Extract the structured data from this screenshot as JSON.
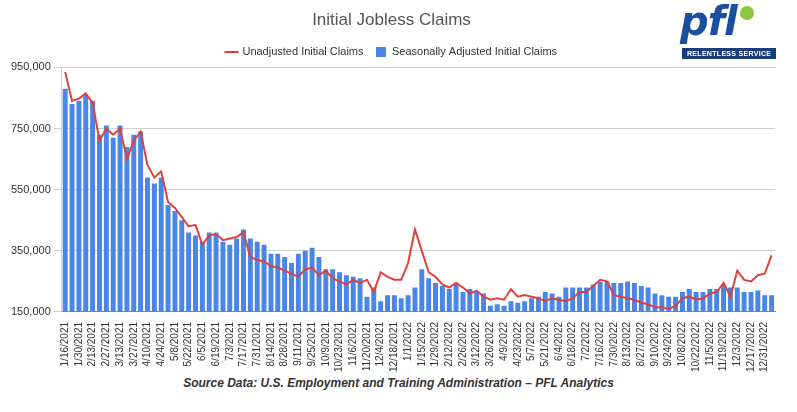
{
  "chart_data": {
    "type": "bar",
    "title": "Initial Jobless Claims",
    "source": "Source Data: U.S. Employment and Training Administration – PFL Analytics",
    "logo_text": "pfl",
    "logo_tagline": "RELENTLESS SERVICE",
    "categories": [
      "1/16/2021",
      null,
      "1/30/2021",
      null,
      "2/13/2021",
      null,
      "2/27/2021",
      null,
      "3/13/2021",
      null,
      "3/27/2021",
      null,
      "4/10/2021",
      null,
      "4/24/2021",
      null,
      "5/8/2021",
      null,
      "5/22/2021",
      null,
      "6/5/2021",
      null,
      "6/19/2021",
      null,
      "7/3/2021",
      null,
      "7/17/2021",
      null,
      "7/31/2021",
      null,
      "8/14/2021",
      null,
      "8/28/2021",
      null,
      "9/11/2021",
      null,
      "9/25/2021",
      null,
      "10/9/2021",
      null,
      "10/23/2021",
      null,
      "11/6/2021",
      null,
      "11/20/2021",
      null,
      "12/4/2021",
      null,
      "12/18/2021",
      null,
      "1/1/2022",
      null,
      "1/15/2022",
      null,
      "1/29/2022",
      null,
      "2/12/2022",
      null,
      "2/26/2022",
      null,
      "3/12/2022",
      null,
      "3/26/2022",
      null,
      "4/9/2022",
      null,
      "4/23/2022",
      null,
      "5/7/2022",
      null,
      "5/21/2022",
      null,
      "6/4/2022",
      null,
      "6/18/2022",
      null,
      "7/2/2022",
      null,
      "7/16/2022",
      null,
      "7/30/2022",
      null,
      "8/13/2022",
      null,
      "8/27/2022",
      null,
      "9/10/2022",
      null,
      "9/24/2022",
      null,
      "10/8/2022",
      null,
      "10/22/2022",
      null,
      "11/5/2022",
      null,
      "11/19/2022",
      null,
      "12/3/2022",
      null,
      "12/17/2022",
      null,
      "12/31/2022",
      null
    ],
    "series": [
      {
        "name": "Unadjusted Initial Claims",
        "type": "line",
        "color": "#e0403a",
        "line_style": "solid",
        "marker": "none",
        "values": [
          935000,
          840000,
          848000,
          865000,
          835000,
          710000,
          750000,
          730000,
          750000,
          650000,
          710000,
          740000,
          630000,
          590000,
          610000,
          510000,
          490000,
          460000,
          430000,
          435000,
          370000,
          400000,
          405000,
          385000,
          390000,
          395000,
          410000,
          330000,
          320000,
          315000,
          300000,
          295000,
          285000,
          275000,
          265000,
          290000,
          295000,
          270000,
          285000,
          260000,
          250000,
          240000,
          255000,
          245000,
          255000,
          215000,
          280000,
          265000,
          255000,
          255000,
          310000,
          420000,
          350000,
          280000,
          265000,
          240000,
          230000,
          245000,
          230000,
          210000,
          220000,
          200000,
          190000,
          195000,
          190000,
          225000,
          200000,
          205000,
          200000,
          195000,
          185000,
          195000,
          190000,
          185000,
          195000,
          215000,
          215000,
          235000,
          255000,
          250000,
          205000,
          200000,
          195000,
          190000,
          180000,
          175000,
          165000,
          165000,
          160000,
          170000,
          195000,
          200000,
          190000,
          195000,
          210000,
          215000,
          245000,
          200000,
          285000,
          255000,
          250000,
          270000,
          275000,
          335000
        ]
      },
      {
        "name": "Seasonally Adjusted Initial Claims",
        "type": "bar",
        "color": "#4a86e8",
        "values": [
          880000,
          830000,
          840000,
          860000,
          840000,
          730000,
          760000,
          720000,
          760000,
          690000,
          730000,
          740000,
          590000,
          570000,
          590000,
          500000,
          480000,
          450000,
          410000,
          400000,
          380000,
          410000,
          410000,
          380000,
          370000,
          390000,
          420000,
          390000,
          380000,
          370000,
          340000,
          340000,
          330000,
          310000,
          340000,
          350000,
          360000,
          330000,
          290000,
          290000,
          280000,
          270000,
          265000,
          260000,
          200000,
          230000,
          185000,
          205000,
          205000,
          195000,
          205000,
          230000,
          290000,
          260000,
          245000,
          235000,
          225000,
          245000,
          215000,
          225000,
          215000,
          210000,
          170000,
          175000,
          170000,
          185000,
          180000,
          185000,
          195000,
          200000,
          215000,
          210000,
          200000,
          230000,
          230000,
          230000,
          230000,
          240000,
          250000,
          250000,
          245000,
          245000,
          250000,
          245000,
          235000,
          230000,
          210000,
          205000,
          200000,
          200000,
          215000,
          225000,
          215000,
          215000,
          225000,
          225000,
          240000,
          230000,
          230000,
          215000,
          215000,
          220000,
          205000,
          205000
        ]
      }
    ],
    "ylim": [
      150000,
      950000
    ],
    "yticks": [
      {
        "value": 150000,
        "label": "150,000"
      },
      {
        "value": 350000,
        "label": "350,000"
      },
      {
        "value": 550000,
        "label": "550,000"
      },
      {
        "value": 750000,
        "label": "750,000"
      },
      {
        "value": 950000,
        "label": "950,000"
      }
    ],
    "grid": true,
    "legend": "top"
  }
}
